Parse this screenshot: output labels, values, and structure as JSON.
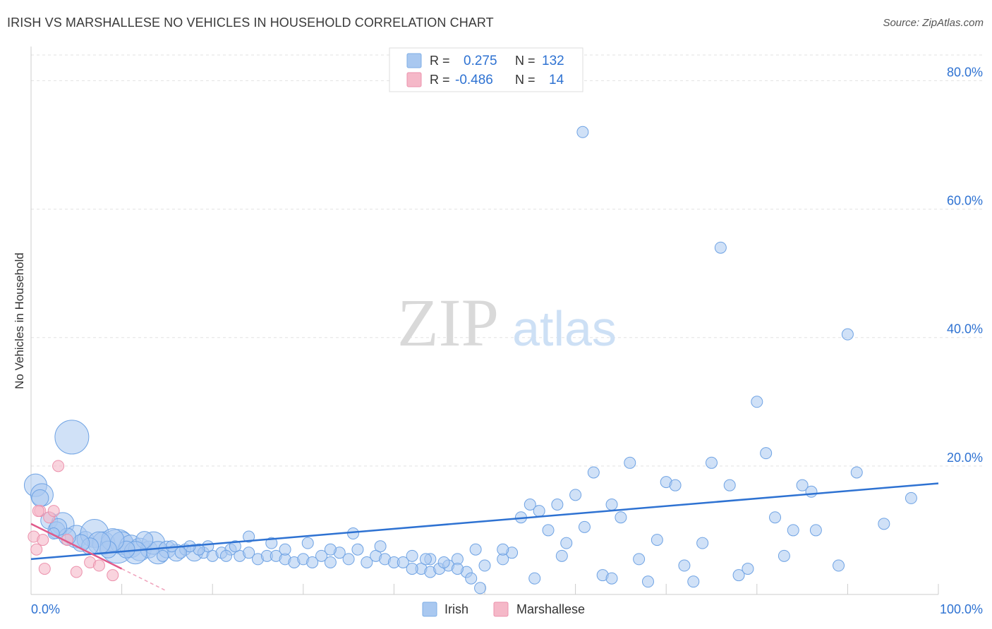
{
  "header": {
    "title": "IRISH VS MARSHALLESE NO VEHICLES IN HOUSEHOLD CORRELATION CHART",
    "source": "Source: ZipAtlas.com"
  },
  "watermark": {
    "zip": "ZIP",
    "atlas": "atlas"
  },
  "legend": [
    {
      "r_label": "R =",
      "r_value": "0.275",
      "n_label": "N =",
      "n_value": "132",
      "color": "#a9c8f0"
    },
    {
      "r_label": "R =",
      "r_value": "-0.486",
      "n_label": "N =",
      "n_value": "14",
      "color": "#f5b8c8"
    }
  ],
  "bottom_legend": [
    {
      "label": "Irish",
      "color": "#a9c8f0"
    },
    {
      "label": "Marshallese",
      "color": "#f5b8c8"
    }
  ],
  "colors": {
    "blue": "#2e72d2",
    "blue_fill": "#a9c8f0",
    "pink": "#e05a8a",
    "pink_fill": "#f5b8c8",
    "value_text": "#2e72d2"
  },
  "chart_data": {
    "type": "scatter",
    "title": "IRISH VS MARSHALLESE NO VEHICLES IN HOUSEHOLD CORRELATION CHART",
    "xlabel": "",
    "ylabel": "No Vehicles in Household",
    "xlim": [
      0,
      100
    ],
    "ylim": [
      0,
      84
    ],
    "x_tick_labels": [
      "0.0%",
      "100.0%"
    ],
    "y_ticks": [
      20,
      40,
      60,
      80
    ],
    "y_tick_labels": [
      "20.0%",
      "40.0%",
      "60.0%",
      "80.0%"
    ],
    "series": [
      {
        "name": "Irish",
        "trend": {
          "x": [
            0,
            100
          ],
          "y": [
            5.5,
            17.3
          ]
        },
        "points": [
          [
            0.5,
            17.0,
            2
          ],
          [
            1.2,
            15.5,
            2
          ],
          [
            1.0,
            15.0,
            1.5
          ],
          [
            4.5,
            24.5,
            3
          ],
          [
            2.0,
            11.5,
            1.5
          ],
          [
            3.5,
            11.0,
            2
          ],
          [
            2.8,
            10.0,
            1.5
          ],
          [
            5.0,
            9.0,
            2
          ],
          [
            6.0,
            8.5,
            1.5
          ],
          [
            7.0,
            9.5,
            2.5
          ],
          [
            8.0,
            8.0,
            2
          ],
          [
            9.5,
            7.5,
            3
          ],
          [
            10.0,
            8.0,
            2
          ],
          [
            11.0,
            7.5,
            2
          ],
          [
            12.0,
            7.0,
            2
          ],
          [
            13.0,
            7.0,
            1.5
          ],
          [
            13.5,
            8.0,
            2
          ],
          [
            14.0,
            6.5,
            2
          ],
          [
            15.0,
            7.0,
            1.5
          ],
          [
            16.0,
            6.5,
            1.5
          ],
          [
            17.0,
            7.0,
            1
          ],
          [
            18.0,
            6.5,
            1.5
          ],
          [
            19.0,
            6.5,
            1
          ],
          [
            20.0,
            6.0,
            1
          ],
          [
            21.0,
            6.5,
            1
          ],
          [
            22.0,
            7.0,
            1
          ],
          [
            23.0,
            6.0,
            1
          ],
          [
            24.0,
            6.5,
            1
          ],
          [
            25.0,
            5.5,
            1
          ],
          [
            26.0,
            6.0,
            1
          ],
          [
            27.0,
            6.0,
            1
          ],
          [
            28.0,
            5.5,
            1
          ],
          [
            29.0,
            5.0,
            1
          ],
          [
            30.0,
            5.5,
            1
          ],
          [
            31.0,
            5.0,
            1
          ],
          [
            32.0,
            6.0,
            1
          ],
          [
            33.0,
            5.0,
            1
          ],
          [
            34.0,
            6.5,
            1
          ],
          [
            35.0,
            5.5,
            1
          ],
          [
            36.0,
            7.0,
            1
          ],
          [
            37.0,
            5.0,
            1
          ],
          [
            38.0,
            6.0,
            1
          ],
          [
            39.0,
            5.5,
            1
          ],
          [
            40.0,
            5.0,
            1
          ],
          [
            41.0,
            5.0,
            1
          ],
          [
            42.0,
            6.0,
            1
          ],
          [
            43.0,
            4.0,
            1
          ],
          [
            44.0,
            3.5,
            1
          ],
          [
            45.0,
            4.0,
            1
          ],
          [
            46.0,
            4.5,
            1
          ],
          [
            47.0,
            5.5,
            1
          ],
          [
            48.0,
            3.5,
            1
          ],
          [
            49.0,
            7.0,
            1
          ],
          [
            50.0,
            4.5,
            1
          ],
          [
            52.0,
            5.5,
            1
          ],
          [
            53.0,
            6.5,
            1
          ],
          [
            54.0,
            12.0,
            1
          ],
          [
            55.0,
            14.0,
            1
          ],
          [
            56.0,
            13.0,
            1
          ],
          [
            57.0,
            10.0,
            1
          ],
          [
            58.0,
            14.0,
            1
          ],
          [
            59.0,
            8.0,
            1
          ],
          [
            60.0,
            15.5,
            1
          ],
          [
            61.0,
            10.5,
            1
          ],
          [
            62.0,
            19.0,
            1
          ],
          [
            63.0,
            3.0,
            1
          ],
          [
            64.0,
            14.0,
            1
          ],
          [
            65.0,
            12.0,
            1
          ],
          [
            66.0,
            20.5,
            1
          ],
          [
            67.0,
            5.5,
            1
          ],
          [
            68.0,
            2.0,
            1
          ],
          [
            69.0,
            8.5,
            1
          ],
          [
            70.0,
            17.5,
            1
          ],
          [
            71.0,
            17.0,
            1
          ],
          [
            72.0,
            4.5,
            1
          ],
          [
            73.0,
            2.0,
            1
          ],
          [
            74.0,
            8.0,
            1
          ],
          [
            75.0,
            20.5,
            1
          ],
          [
            76.0,
            54.0,
            1
          ],
          [
            77.0,
            17.0,
            1
          ],
          [
            78.0,
            3.0,
            1
          ],
          [
            79.0,
            4.0,
            1
          ],
          [
            80.0,
            30.0,
            1
          ],
          [
            81.0,
            22.0,
            1
          ],
          [
            82.0,
            12.0,
            1
          ],
          [
            83.0,
            6.0,
            1
          ],
          [
            84.0,
            10.0,
            1
          ],
          [
            85.0,
            17.0,
            1
          ],
          [
            86.0,
            16.0,
            1
          ],
          [
            86.5,
            10.0,
            1
          ],
          [
            89.0,
            4.5,
            1
          ],
          [
            90.0,
            40.5,
            1
          ],
          [
            91.0,
            19.0,
            1
          ],
          [
            94.0,
            11.0,
            1
          ],
          [
            97.0,
            15.0,
            1
          ],
          [
            60.8,
            72.0,
            1
          ],
          [
            64.0,
            2.5,
            1
          ],
          [
            52.0,
            7.0,
            1
          ],
          [
            44.0,
            5.5,
            1
          ],
          [
            42.0,
            4.0,
            1
          ],
          [
            38.5,
            7.5,
            1
          ],
          [
            35.5,
            9.5,
            1
          ],
          [
            33.0,
            7.0,
            1
          ],
          [
            30.5,
            8.0,
            1
          ],
          [
            28.0,
            7.0,
            1
          ],
          [
            26.5,
            8.0,
            1
          ],
          [
            24.0,
            9.0,
            1
          ],
          [
            22.5,
            7.5,
            1
          ],
          [
            21.5,
            6.0,
            1
          ],
          [
            19.5,
            7.5,
            1
          ],
          [
            18.5,
            7.0,
            1
          ],
          [
            17.5,
            7.5,
            1
          ],
          [
            16.5,
            6.5,
            1
          ],
          [
            15.5,
            7.5,
            1
          ],
          [
            14.5,
            6.0,
            1
          ],
          [
            12.5,
            8.5,
            1.5
          ],
          [
            11.5,
            6.5,
            2
          ],
          [
            10.5,
            7.0,
            1.5
          ],
          [
            9.0,
            8.5,
            2
          ],
          [
            8.5,
            7.0,
            1.5
          ],
          [
            7.5,
            8.0,
            2
          ],
          [
            6.5,
            7.5,
            1.5
          ],
          [
            5.5,
            8.0,
            1.5
          ],
          [
            4.0,
            9.0,
            1.5
          ],
          [
            3.0,
            10.5,
            1.5
          ],
          [
            2.5,
            9.5,
            1
          ],
          [
            48.5,
            2.5,
            1
          ],
          [
            47.0,
            4.0,
            1
          ],
          [
            45.5,
            5.0,
            1
          ],
          [
            43.5,
            5.5,
            1
          ],
          [
            49.5,
            1.0,
            1
          ],
          [
            55.5,
            2.5,
            1
          ],
          [
            58.5,
            6.0,
            1
          ]
        ]
      },
      {
        "name": "Marshallese",
        "trend": {
          "x": [
            0,
            10
          ],
          "y": [
            11.0,
            4.0
          ]
        },
        "trend_ext": {
          "x": [
            10,
            15
          ],
          "y": [
            4.0,
            0.5
          ]
        },
        "points": [
          [
            0.3,
            9.0
          ],
          [
            0.6,
            7.0
          ],
          [
            1.0,
            13.0
          ],
          [
            1.3,
            8.5
          ],
          [
            1.5,
            4.0
          ],
          [
            2.0,
            12.0
          ],
          [
            2.5,
            13.0
          ],
          [
            3.0,
            20.0
          ],
          [
            4.0,
            8.5
          ],
          [
            5.0,
            3.5
          ],
          [
            6.5,
            5.0
          ],
          [
            7.5,
            4.5
          ],
          [
            9.0,
            3.0
          ],
          [
            0.8,
            13.0
          ]
        ]
      }
    ]
  }
}
